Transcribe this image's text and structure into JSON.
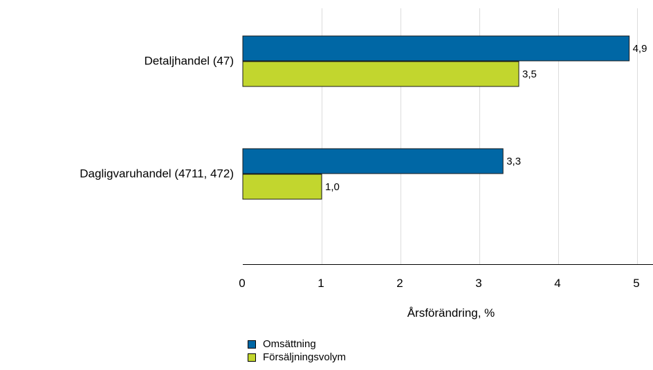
{
  "chart_data": {
    "type": "bar",
    "orientation": "horizontal",
    "categories": [
      "Detaljhandel (47)",
      "Dagligvaruhandel (4711, 472)"
    ],
    "series": [
      {
        "name": "Omsättning",
        "values": [
          4.9,
          3.3
        ],
        "labels": [
          "4,9",
          "3,3"
        ],
        "color": "#0067a5"
      },
      {
        "name": "Försäljningsvolym",
        "values": [
          3.5,
          1.0
        ],
        "labels": [
          "3,5",
          "1,0"
        ],
        "color": "#c2d62e"
      }
    ],
    "xlabel": "Årsförändring, %",
    "ylabel": "",
    "xlim": [
      0,
      5
    ],
    "xticks": [
      {
        "value": 0,
        "label": "0"
      },
      {
        "value": 1,
        "label": "1"
      },
      {
        "value": 2,
        "label": "2"
      },
      {
        "value": 3,
        "label": "3"
      },
      {
        "value": 4,
        "label": "4"
      },
      {
        "value": 5,
        "label": "5"
      }
    ],
    "grid": true,
    "legend_position": "bottom"
  }
}
